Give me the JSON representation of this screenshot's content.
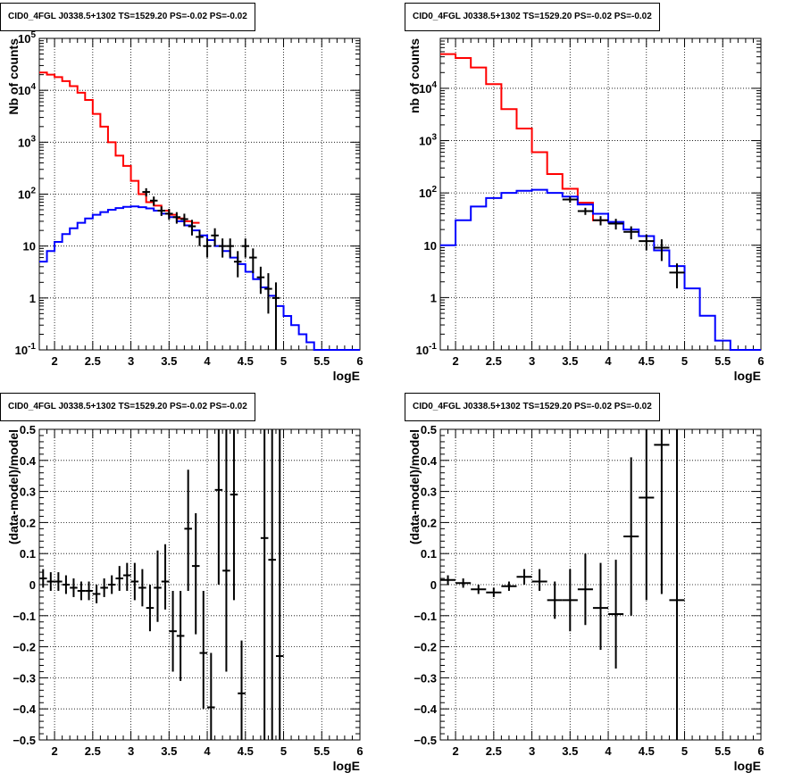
{
  "colors": {
    "data": "#000000",
    "total_model": "#ff0000",
    "source_model": "#0000ff",
    "grid": "#000000"
  },
  "chart_data": [
    {
      "type": "line",
      "title": "CID0_4FGL J0338.5+1302 TS=1529.20 PS=-0.02 PS=-0.02",
      "xlabel": "logE",
      "ylabel": "Nb of counts",
      "xlim": [
        1.8,
        6.0
      ],
      "ylim": [
        0.1,
        100000
      ],
      "yscale": "log",
      "grid": true,
      "xticks": [
        2,
        2.5,
        3,
        3.5,
        4,
        4.5,
        5,
        5.5,
        6
      ],
      "xtick_labels": [
        "2",
        "2.5",
        "3",
        "3.5",
        "4",
        "4.5",
        "5",
        "5.5",
        "6"
      ],
      "ytick_labels": [
        "10^-1",
        "1",
        "10",
        "10^2",
        "10^3",
        "10^4",
        "10^5"
      ],
      "series": [
        {
          "role": "total_model",
          "style": "step",
          "edges": [
            1.8,
            1.9,
            2.0,
            2.1,
            2.2,
            2.3,
            2.4,
            2.5,
            2.6,
            2.7,
            2.8,
            2.9,
            3.0,
            3.1,
            3.2,
            3.3,
            3.4,
            3.5,
            3.6,
            3.7,
            3.8,
            3.9
          ],
          "values": [
            22000,
            20000,
            18000,
            15000,
            12000,
            9000,
            6500,
            3500,
            2000,
            1000,
            550,
            350,
            180,
            100,
            70,
            60,
            48,
            40,
            34,
            30,
            28
          ]
        },
        {
          "role": "source_model",
          "style": "step",
          "edges": [
            1.8,
            1.9,
            2.0,
            2.1,
            2.2,
            2.3,
            2.4,
            2.5,
            2.6,
            2.7,
            2.8,
            2.9,
            3.0,
            3.1,
            3.2,
            3.3,
            3.4,
            3.5,
            3.6,
            3.7,
            3.8,
            3.9,
            4.0,
            4.1,
            4.2,
            4.3,
            4.4,
            4.5,
            4.6,
            4.7,
            4.8,
            4.9,
            5.0,
            5.1,
            5.2,
            5.3,
            5.4,
            5.5,
            5.6,
            5.7,
            5.8,
            5.9,
            6.0
          ],
          "values": [
            5,
            8,
            12,
            17,
            22,
            28,
            34,
            40,
            45,
            50,
            54,
            57,
            58,
            56,
            53,
            48,
            42,
            36,
            30,
            25,
            20,
            16,
            13,
            10,
            8,
            6,
            4.5,
            3.2,
            2.3,
            1.6,
            1.1,
            0.7,
            0.45,
            0.3,
            0.2,
            0.14,
            0.1,
            0.1,
            0.1,
            0.1,
            0.1,
            0.1
          ]
        },
        {
          "role": "data",
          "style": "errorbar",
          "x": [
            3.2,
            3.3,
            3.4,
            3.5,
            3.6,
            3.7,
            3.8,
            3.9,
            4.0,
            4.1,
            4.2,
            4.3,
            4.4,
            4.5,
            4.6,
            4.7,
            4.8,
            4.9
          ],
          "y": [
            110,
            75,
            48,
            42,
            36,
            33,
            24,
            15,
            10,
            16,
            10,
            10,
            5,
            10,
            6,
            2.5,
            1.5,
            1
          ],
          "ylo": [
            90,
            60,
            38,
            32,
            27,
            24,
            16,
            10,
            6,
            10,
            6,
            6,
            2.5,
            6,
            3,
            1.2,
            0.5,
            0.1
          ],
          "yhi": [
            130,
            90,
            58,
            52,
            45,
            42,
            32,
            20,
            14,
            22,
            14,
            14,
            8,
            14,
            9,
            4,
            3,
            2
          ],
          "xerr": 0.05
        }
      ]
    },
    {
      "type": "line",
      "title": "CID0_4FGL J0338.5+1302 TS=1529.20 PS=-0.02 PS=-0.02",
      "xlabel": "logE",
      "ylabel": "nb of counts",
      "xlim": [
        1.8,
        6.0
      ],
      "ylim": [
        0.1,
        90000
      ],
      "yscale": "log",
      "grid": true,
      "xticks": [
        2,
        2.5,
        3,
        3.5,
        4,
        4.5,
        5,
        5.5,
        6
      ],
      "xtick_labels": [
        "2",
        "2.5",
        "3",
        "3.5",
        "4",
        "4.5",
        "5",
        "5.5",
        "6"
      ],
      "ytick_labels": [
        "10^-1",
        "1",
        "10",
        "10^2",
        "10^3",
        "10^4"
      ],
      "series": [
        {
          "role": "total_model",
          "style": "step",
          "edges": [
            1.8,
            2.0,
            2.2,
            2.4,
            2.6,
            2.8,
            3.0,
            3.2,
            3.4,
            3.6,
            3.8,
            4.0
          ],
          "values": [
            45000,
            38000,
            25000,
            12000,
            4000,
            1700,
            600,
            230,
            120,
            65,
            30
          ]
        },
        {
          "role": "source_model",
          "style": "step",
          "edges": [
            1.8,
            2.0,
            2.2,
            2.4,
            2.6,
            2.8,
            3.0,
            3.2,
            3.4,
            3.6,
            3.8,
            4.0,
            4.2,
            4.4,
            4.6,
            4.8,
            5.0,
            5.2,
            5.4,
            5.6,
            5.8,
            6.0
          ],
          "values": [
            10,
            30,
            55,
            80,
            100,
            110,
            115,
            100,
            85,
            60,
            40,
            28,
            20,
            15,
            8,
            4,
            1.5,
            0.45,
            0.15,
            0.1,
            0.1
          ]
        },
        {
          "role": "data",
          "style": "errorbar",
          "x": [
            3.5,
            3.7,
            3.9,
            4.1,
            4.3,
            4.5,
            4.7,
            4.9
          ],
          "y": [
            75,
            45,
            30,
            26,
            18,
            12,
            9,
            3
          ],
          "ylo": [
            65,
            38,
            24,
            20,
            13,
            8,
            5,
            1.5
          ],
          "yhi": [
            85,
            52,
            36,
            32,
            23,
            16,
            13,
            4.5
          ],
          "xerr": 0.1
        }
      ]
    },
    {
      "type": "scatter",
      "title": "CID0_4FGL J0338.5+1302 TS=1529.20 PS=-0.02 PS=-0.02",
      "xlabel": "logE",
      "ylabel": "(data-model)/model",
      "xlim": [
        1.8,
        6.0
      ],
      "ylim": [
        -0.5,
        0.5
      ],
      "grid": true,
      "xticks": [
        2,
        2.5,
        3,
        3.5,
        4,
        4.5,
        5,
        5.5,
        6
      ],
      "xtick_labels": [
        "2",
        "2.5",
        "3",
        "3.5",
        "4",
        "4.5",
        "5",
        "5.5",
        "6"
      ],
      "yticks": [
        -0.5,
        -0.4,
        -0.3,
        -0.2,
        -0.1,
        0,
        0.1,
        0.2,
        0.3,
        0.4,
        0.5
      ],
      "ytick_labels": [
        "−0.5",
        "−0.4",
        "−0.3",
        "−0.2",
        "−0.1",
        "0",
        "0.1",
        "0.2",
        "0.3",
        "0.4",
        "0.5"
      ],
      "series": [
        {
          "role": "data",
          "style": "errorbar",
          "x": [
            1.85,
            1.95,
            2.05,
            2.15,
            2.25,
            2.35,
            2.45,
            2.55,
            2.65,
            2.75,
            2.85,
            2.95,
            3.05,
            3.15,
            3.25,
            3.35,
            3.45,
            3.55,
            3.65,
            3.75,
            3.85,
            3.95,
            4.05,
            4.15,
            4.25,
            4.35,
            4.45,
            4.75,
            4.85,
            4.95
          ],
          "y": [
            0.02,
            0.01,
            0.01,
            0.0,
            -0.01,
            -0.02,
            -0.02,
            -0.03,
            -0.01,
            0.0,
            0.02,
            0.03,
            0.01,
            -0.01,
            -0.075,
            -0.01,
            0.01,
            -0.15,
            -0.165,
            0.18,
            0.06,
            -0.22,
            -0.395,
            0.305,
            0.045,
            0.29,
            -0.35,
            0.15,
            0.08,
            -0.23
          ],
          "ylo": [
            -0.01,
            -0.02,
            -0.02,
            -0.03,
            -0.04,
            -0.05,
            -0.05,
            -0.06,
            -0.04,
            -0.03,
            -0.02,
            -0.02,
            -0.05,
            -0.07,
            -0.15,
            -0.12,
            -0.08,
            -0.28,
            -0.31,
            -0.02,
            -0.16,
            -0.4,
            -0.5,
            0.0,
            -0.28,
            -0.05,
            -0.5,
            -0.5,
            -0.5,
            -0.5
          ],
          "yhi": [
            0.05,
            0.04,
            0.04,
            0.03,
            0.02,
            0.01,
            0.01,
            0.0,
            0.02,
            0.03,
            0.06,
            0.07,
            0.07,
            0.05,
            0.0,
            0.11,
            0.13,
            -0.02,
            -0.02,
            0.37,
            0.23,
            -0.02,
            -0.22,
            0.5,
            0.5,
            0.5,
            -0.18,
            0.5,
            0.5,
            0.5
          ],
          "xerr": 0.05
        }
      ]
    },
    {
      "type": "scatter",
      "title": "CID0_4FGL J0338.5+1302 TS=1529.20 PS=-0.02 PS=-0.02",
      "xlabel": "logE",
      "ylabel": "(data-model)/model",
      "xlim": [
        1.8,
        6.0
      ],
      "ylim": [
        -0.5,
        0.5
      ],
      "grid": true,
      "xticks": [
        2,
        2.5,
        3,
        3.5,
        4,
        4.5,
        5,
        5.5,
        6
      ],
      "xtick_labels": [
        "2",
        "2.5",
        "3",
        "3.5",
        "4",
        "4.5",
        "5",
        "5.5",
        "6"
      ],
      "yticks": [
        -0.5,
        -0.4,
        -0.3,
        -0.2,
        -0.1,
        0,
        0.1,
        0.2,
        0.3,
        0.4,
        0.5
      ],
      "ytick_labels": [
        "−0.5",
        "−0.4",
        "−0.3",
        "−0.2",
        "−0.1",
        "0",
        "0.1",
        "0.2",
        "0.3",
        "0.4",
        "0.5"
      ],
      "series": [
        {
          "role": "data",
          "style": "errorbar",
          "x": [
            1.9,
            2.1,
            2.3,
            2.5,
            2.7,
            2.9,
            3.1,
            3.3,
            3.5,
            3.7,
            3.9,
            4.1,
            4.3,
            4.5,
            4.7,
            4.9
          ],
          "y": [
            0.015,
            0.005,
            -0.015,
            -0.025,
            -0.005,
            0.025,
            0.01,
            -0.05,
            -0.05,
            -0.015,
            -0.075,
            -0.095,
            0.155,
            0.28,
            0.45,
            -0.05
          ],
          "ylo": [
            0.0,
            -0.01,
            -0.03,
            -0.04,
            -0.02,
            0.0,
            -0.02,
            -0.11,
            -0.15,
            -0.13,
            -0.21,
            -0.27,
            -0.1,
            -0.05,
            -0.03,
            -0.5
          ],
          "yhi": [
            0.03,
            0.02,
            0.0,
            -0.01,
            0.01,
            0.05,
            0.05,
            0.01,
            0.05,
            0.1,
            0.07,
            0.08,
            0.41,
            0.5,
            0.5,
            0.5
          ],
          "xerr": 0.1
        }
      ]
    }
  ]
}
